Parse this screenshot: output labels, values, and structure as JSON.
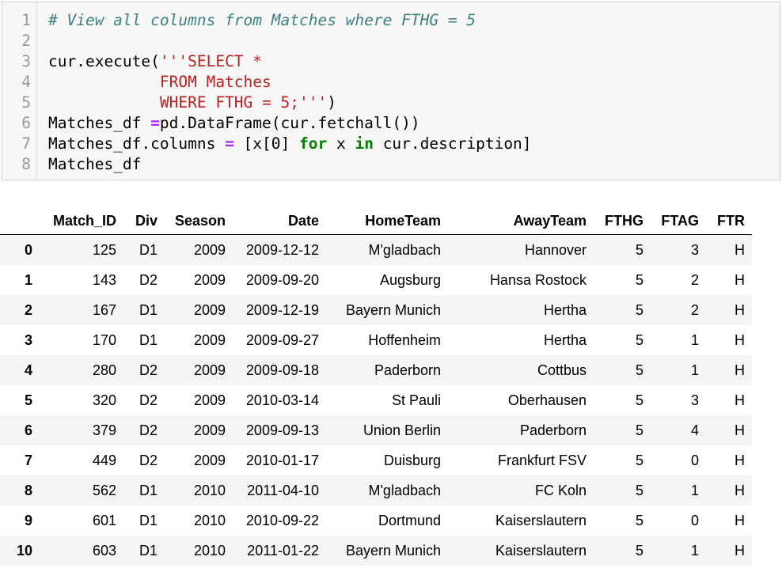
{
  "code_cell": {
    "lines": [
      {
        "n": "1",
        "parts": [
          {
            "t": "# View all columns from Matches where FTHG = 5",
            "c": "cm"
          }
        ]
      },
      {
        "n": "2",
        "parts": []
      },
      {
        "n": "3",
        "parts": [
          {
            "t": "cur.execute(",
            "c": ""
          },
          {
            "t": "'''SELECT *",
            "c": "st"
          }
        ]
      },
      {
        "n": "4",
        "parts": [
          {
            "t": "            FROM Matches",
            "c": "st"
          }
        ]
      },
      {
        "n": "5",
        "parts": [
          {
            "t": "            WHERE FTHG = 5;'''",
            "c": "st"
          },
          {
            "t": ")",
            "c": ""
          }
        ]
      },
      {
        "n": "6",
        "parts": [
          {
            "t": "Matches_df ",
            "c": ""
          },
          {
            "t": "=",
            "c": "op"
          },
          {
            "t": "pd.DataFrame(cur.fetchall())",
            "c": ""
          }
        ]
      },
      {
        "n": "7",
        "parts": [
          {
            "t": "Matches_df.columns ",
            "c": ""
          },
          {
            "t": "=",
            "c": "op"
          },
          {
            "t": " [x[0] ",
            "c": ""
          },
          {
            "t": "for",
            "c": "kw"
          },
          {
            "t": " x ",
            "c": ""
          },
          {
            "t": "in",
            "c": "kw"
          },
          {
            "t": " cur.description]",
            "c": ""
          }
        ]
      },
      {
        "n": "8",
        "parts": [
          {
            "t": "Matches_df",
            "c": ""
          }
        ]
      }
    ]
  },
  "dataframe": {
    "columns": [
      "Match_ID",
      "Div",
      "Season",
      "Date",
      "HomeTeam",
      "AwayTeam",
      "FTHG",
      "FTAG",
      "FTR"
    ],
    "rows": [
      [
        "0",
        "125",
        "D1",
        "2009",
        "2009-12-12",
        "M'gladbach",
        "Hannover",
        "5",
        "3",
        "H"
      ],
      [
        "1",
        "143",
        "D2",
        "2009",
        "2009-09-20",
        "Augsburg",
        "Hansa Rostock",
        "5",
        "2",
        "H"
      ],
      [
        "2",
        "167",
        "D1",
        "2009",
        "2009-12-19",
        "Bayern Munich",
        "Hertha",
        "5",
        "2",
        "H"
      ],
      [
        "3",
        "170",
        "D1",
        "2009",
        "2009-09-27",
        "Hoffenheim",
        "Hertha",
        "5",
        "1",
        "H"
      ],
      [
        "4",
        "280",
        "D2",
        "2009",
        "2009-09-18",
        "Paderborn",
        "Cottbus",
        "5",
        "1",
        "H"
      ],
      [
        "5",
        "320",
        "D2",
        "2009",
        "2010-03-14",
        "St Pauli",
        "Oberhausen",
        "5",
        "3",
        "H"
      ],
      [
        "6",
        "379",
        "D2",
        "2009",
        "2009-09-13",
        "Union Berlin",
        "Paderborn",
        "5",
        "4",
        "H"
      ],
      [
        "7",
        "449",
        "D2",
        "2009",
        "2010-01-17",
        "Duisburg",
        "Frankfurt FSV",
        "5",
        "0",
        "H"
      ],
      [
        "8",
        "562",
        "D1",
        "2010",
        "2011-04-10",
        "M'gladbach",
        "FC Koln",
        "5",
        "1",
        "H"
      ],
      [
        "9",
        "601",
        "D1",
        "2010",
        "2010-09-22",
        "Dortmund",
        "Kaiserslautern",
        "5",
        "0",
        "H"
      ],
      [
        "10",
        "603",
        "D1",
        "2010",
        "2011-01-22",
        "Bayern Munich",
        "Kaiserslautern",
        "5",
        "1",
        "H"
      ]
    ]
  }
}
